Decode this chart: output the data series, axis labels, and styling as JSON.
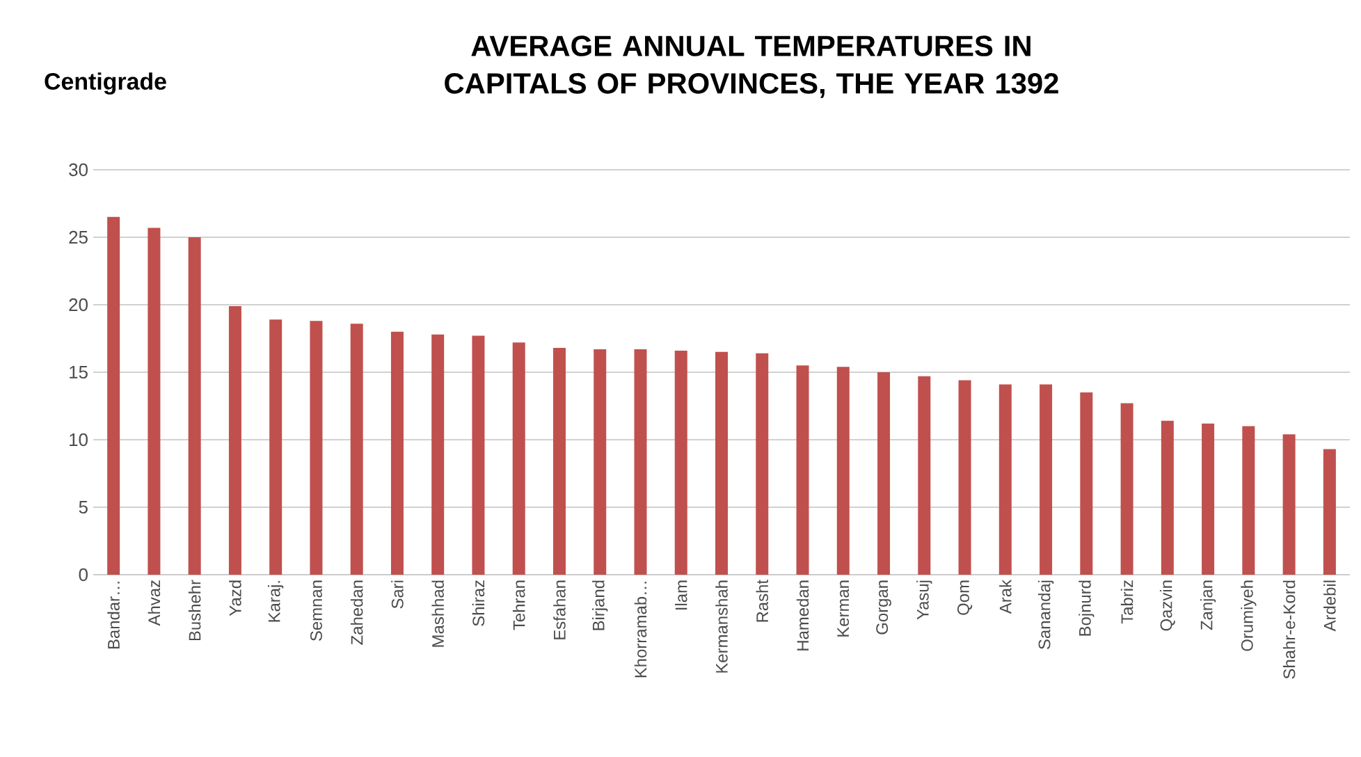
{
  "chart_data": {
    "type": "bar",
    "title": "AVERAGE  ANNUAL TEMPERATURES IN CAPITALS OF PROVINCES, THE YEAR 1392",
    "ylabel": "Centigrade",
    "categories": [
      "Bandar…",
      "Ahvaz",
      "Bushehr",
      "Yazd",
      "Karaj.",
      "Semnan",
      "Zahedan",
      "Sari",
      "Mashhad",
      "Shiraz",
      "Tehran",
      "Esfahan",
      "Birjand",
      "Khorramab…",
      "Ilam",
      "Kermanshah",
      "Rasht",
      "Hamedan",
      "Kerman",
      "Gorgan",
      "Yasuj",
      "Qom",
      "Arak",
      "Sanandaj",
      "Bojnurd",
      "Tabriz",
      "Qazvin",
      "Zanjan",
      "Orumiyeh",
      "Shahr-e-Kord",
      "Ardebil"
    ],
    "values": [
      26.5,
      25.7,
      25.0,
      19.9,
      18.9,
      18.8,
      18.6,
      18.0,
      17.8,
      17.7,
      17.2,
      16.8,
      16.7,
      16.7,
      16.6,
      16.5,
      16.4,
      15.5,
      15.4,
      15.0,
      14.7,
      14.4,
      14.1,
      14.1,
      13.5,
      12.7,
      11.4,
      11.2,
      11.0,
      10.4,
      9.3
    ],
    "color": "#c0504d",
    "ylim": [
      0,
      30
    ],
    "yticks": [
      0,
      5,
      10,
      15,
      20,
      25,
      30
    ],
    "grid": "y"
  }
}
